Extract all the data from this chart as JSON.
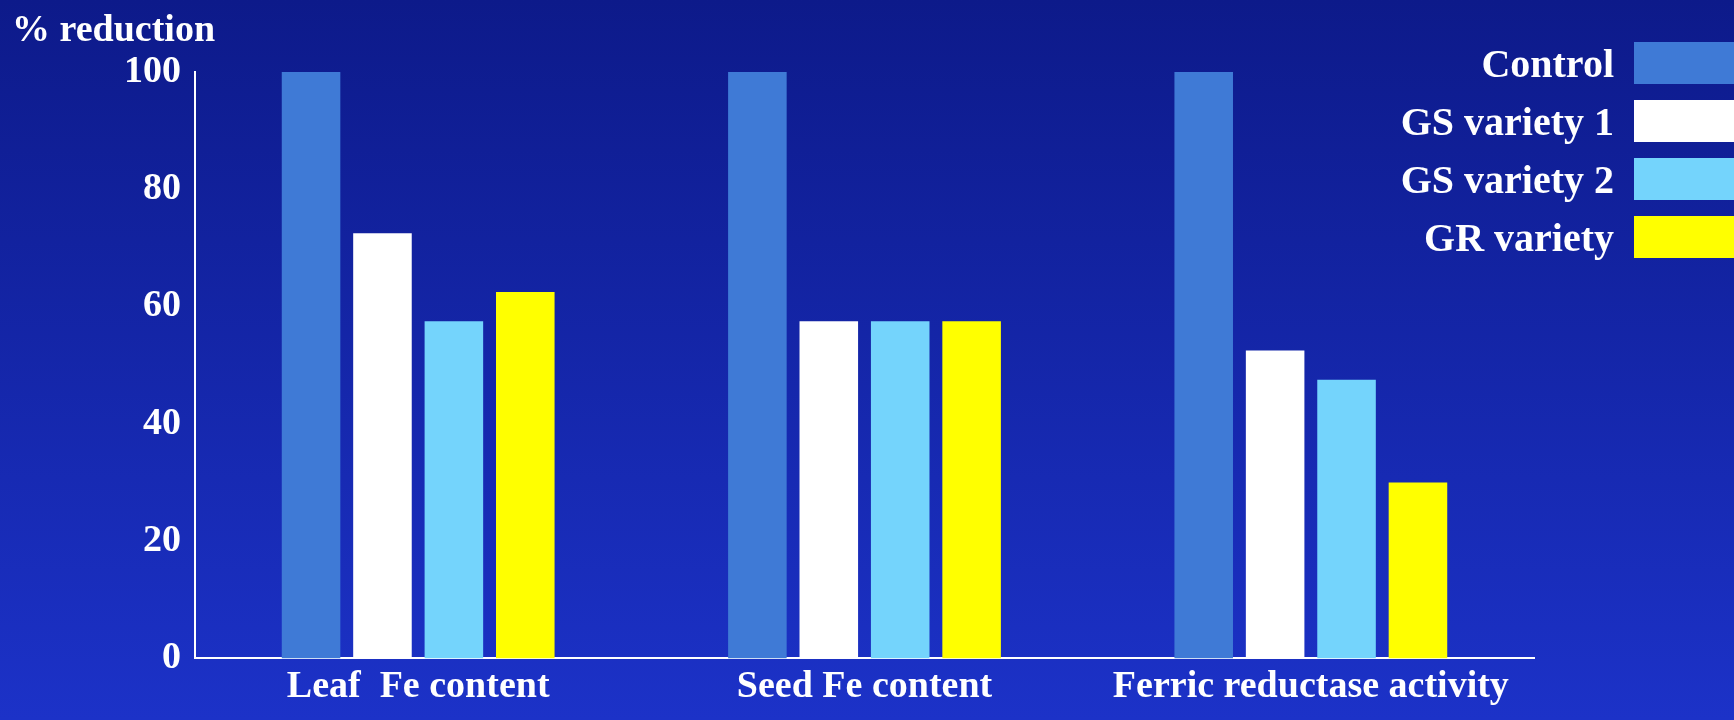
{
  "chart_data": {
    "type": "bar",
    "ylabel": "% reduction",
    "categories": [
      "Leaf  Fe content",
      "Seed Fe content",
      "Ferric reductase activity"
    ],
    "series": [
      {
        "name": "Control",
        "color": "#3f7ad6",
        "values": [
          100,
          100,
          100
        ]
      },
      {
        "name": "GS variety 1",
        "color": "#ffffff",
        "values": [
          72.5,
          57.5,
          52.5
        ]
      },
      {
        "name": "GS variety 2",
        "color": "#74d4fc",
        "values": [
          57.5,
          57.5,
          47.5
        ]
      },
      {
        "name": "GR variety",
        "color": "#ffff00",
        "values": [
          62.5,
          57.5,
          30
        ]
      }
    ],
    "ylim": [
      0,
      100
    ],
    "yticks": [
      0,
      20,
      40,
      60,
      80,
      100
    ],
    "grid": false,
    "legend": "top right"
  }
}
